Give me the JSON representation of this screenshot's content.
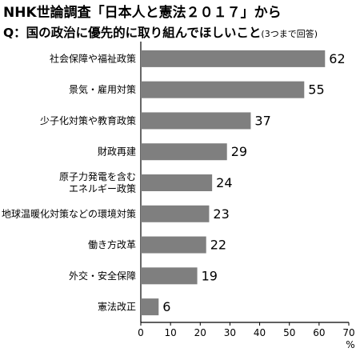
{
  "header": {
    "title": "NHK世論調査「日本人と憲法２０１７」から",
    "question": "Q：国の政治に優先的に取り組んでほしいこと",
    "note": "(3つまで回答)"
  },
  "chart_data": {
    "type": "bar",
    "orientation": "horizontal",
    "categories": [
      [
        "社会保障や福祉政策"
      ],
      [
        "景気・雇用対策"
      ],
      [
        "少子化対策や教育政策"
      ],
      [
        "財政再建"
      ],
      [
        "原子力発電を含む",
        "エネルギー政策"
      ],
      [
        "地球温暖化対策などの環境対策"
      ],
      [
        "働き方改革"
      ],
      [
        "外交・安全保障"
      ],
      [
        "憲法改正"
      ]
    ],
    "values": [
      62,
      55,
      37,
      29,
      24,
      23,
      22,
      19,
      6
    ],
    "xlim": [
      0,
      70
    ],
    "xticks": [
      0,
      10,
      20,
      30,
      40,
      50,
      60,
      70
    ],
    "unit": "%",
    "bar_color": "#7f7f7f",
    "grid": false
  }
}
